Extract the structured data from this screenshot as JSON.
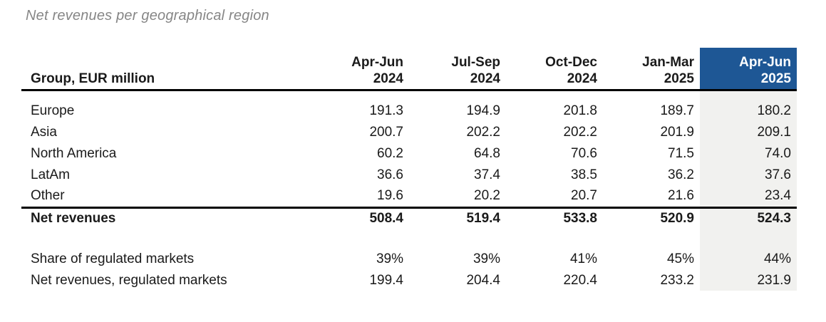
{
  "title": "Net revenues per geographical region",
  "table": {
    "corner_header": "Group, EUR million",
    "columns": [
      {
        "period": "Apr-Jun",
        "year": "2024",
        "highlighted": false
      },
      {
        "period": "Jul-Sep",
        "year": "2024",
        "highlighted": false
      },
      {
        "period": "Oct-Dec",
        "year": "2024",
        "highlighted": false
      },
      {
        "period": "Jan-Mar",
        "year": "2025",
        "highlighted": false
      },
      {
        "period": "Apr-Jun",
        "year": "2025",
        "highlighted": true
      }
    ],
    "rows": [
      {
        "label": "Europe",
        "values": [
          "191.3",
          "194.9",
          "201.8",
          "189.7",
          "180.2"
        ]
      },
      {
        "label": "Asia",
        "values": [
          "200.7",
          "202.2",
          "202.2",
          "201.9",
          "209.1"
        ]
      },
      {
        "label": "North America",
        "values": [
          "60.2",
          "64.8",
          "70.6",
          "71.5",
          "74.0"
        ]
      },
      {
        "label": "LatAm",
        "values": [
          "36.6",
          "37.4",
          "38.5",
          "36.2",
          "37.6"
        ]
      },
      {
        "label": "Other",
        "values": [
          "19.6",
          "20.2",
          "20.7",
          "21.6",
          "23.4"
        ]
      }
    ],
    "total_row": {
      "label": "Net revenues",
      "values": [
        "508.4",
        "519.4",
        "533.8",
        "520.9",
        "524.3"
      ]
    },
    "extra_rows": [
      {
        "label": "Share of regulated markets",
        "values": [
          "39%",
          "39%",
          "41%",
          "45%",
          "44%"
        ]
      },
      {
        "label": "Net revenues, regulated markets",
        "values": [
          "199.4",
          "204.4",
          "220.4",
          "233.2",
          "231.9"
        ]
      }
    ]
  },
  "colors": {
    "highlight_header_bg": "#1e5795",
    "highlight_header_text": "#ffffff",
    "highlight_column_bg": "#f1f1ef",
    "title_color": "#868686",
    "rule_color": "#000000"
  }
}
